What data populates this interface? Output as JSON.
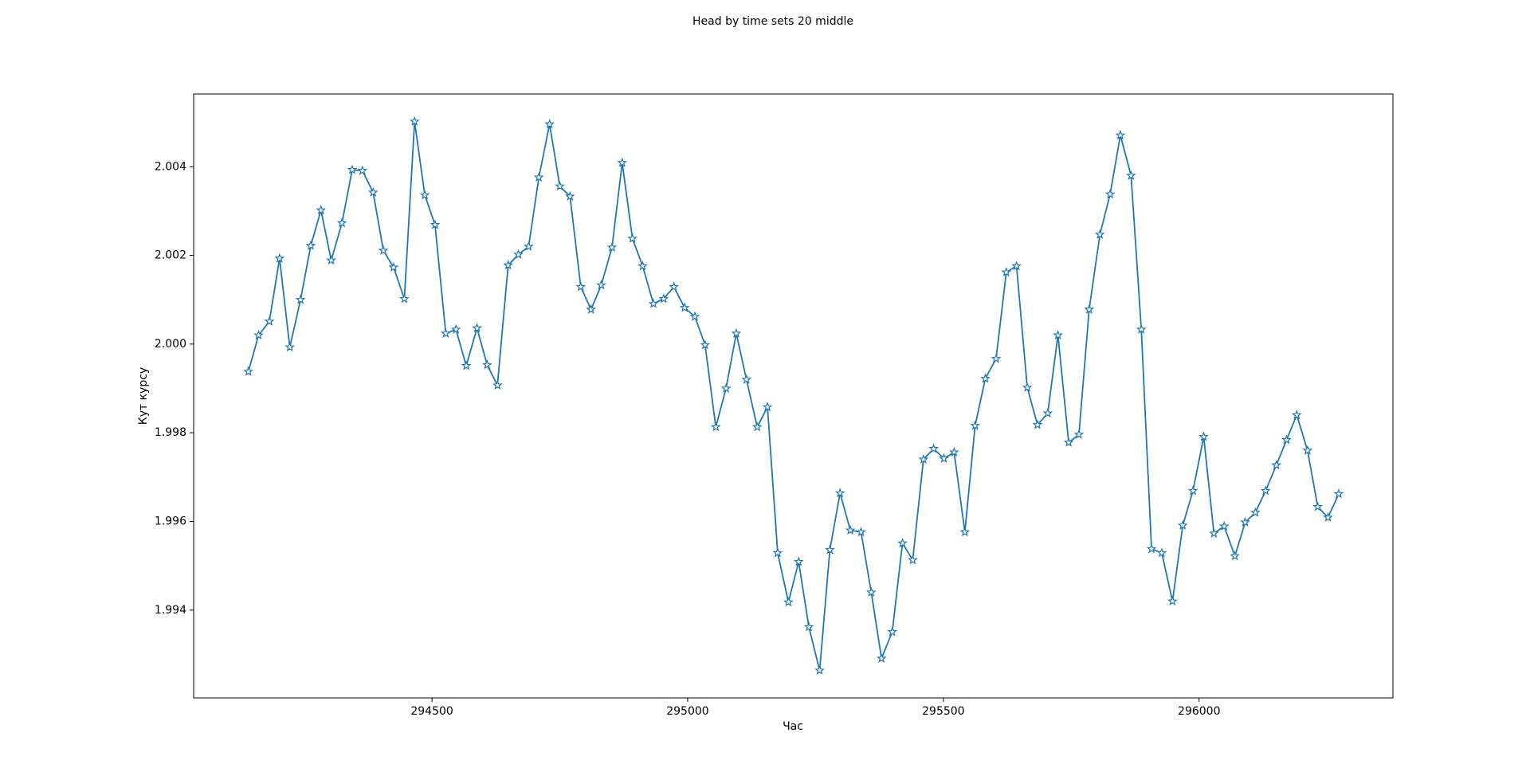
{
  "chart_data": {
    "type": "line",
    "title": "Head by time sets 20 middle",
    "xlabel": "Час",
    "ylabel": "Кут курсу",
    "xlim": [
      294034,
      296379
    ],
    "ylim": [
      1.99202,
      2.00564
    ],
    "xticks": [
      294500,
      295000,
      295500,
      296000
    ],
    "yticks": [
      1.994,
      1.996,
      1.998,
      {
        "value": 2.0,
        "label": "2.000"
      },
      2.002,
      2.004
    ],
    "series": [
      {
        "color": "#1f77b4",
        "marker": "star",
        "x": [
          294141,
          294161,
          294182,
          294202,
          294222,
          294243,
          294263,
          294283,
          294303,
          294324,
          294344,
          294364,
          294385,
          294405,
          294425,
          294446,
          294466,
          294486,
          294506,
          294527,
          294547,
          294567,
          294588,
          294608,
          294628,
          294649,
          294669,
          294689,
          294709,
          294730,
          294750,
          294770,
          294791,
          294811,
          294831,
          294852,
          294872,
          294892,
          294912,
          294933,
          294953,
          294973,
          294994,
          295014,
          295034,
          295055,
          295075,
          295095,
          295115,
          295136,
          295156,
          295176,
          295197,
          295217,
          295237,
          295258,
          295278,
          295298,
          295318,
          295339,
          295359,
          295379,
          295400,
          295420,
          295440,
          295461,
          295481,
          295501,
          295521,
          295542,
          295562,
          295582,
          295603,
          295623,
          295643,
          295664,
          295684,
          295704,
          295724,
          295745,
          295765,
          295785,
          295806,
          295826,
          295846,
          295867,
          295887,
          295907,
          295927,
          295948,
          295968,
          295988,
          296009,
          296029,
          296049,
          296070,
          296090,
          296110,
          296130,
          296151,
          296171,
          296191,
          296212,
          296232,
          296252,
          296273
        ],
        "values": [
          1.99938,
          2.0002,
          2.00051,
          2.00193,
          1.99993,
          2.001,
          2.00222,
          2.00302,
          2.00189,
          2.00273,
          2.00393,
          2.00391,
          2.00342,
          2.00211,
          2.00173,
          2.00102,
          2.00502,
          2.00336,
          2.00269,
          2.00024,
          2.00033,
          1.99951,
          2.00036,
          1.99953,
          1.99907,
          2.00178,
          2.00202,
          2.0022,
          2.00376,
          2.00496,
          2.00356,
          2.00333,
          2.00129,
          2.00078,
          2.00133,
          2.00218,
          2.00409,
          2.00238,
          2.00176,
          2.00091,
          2.00102,
          2.00129,
          2.00082,
          2.00062,
          1.99998,
          1.99813,
          1.999,
          2.00024,
          1.9992,
          1.99813,
          1.99858,
          1.99529,
          1.99418,
          1.99509,
          1.99362,
          1.99264,
          1.99536,
          1.99664,
          1.9958,
          1.99576,
          1.9944,
          1.99291,
          1.99351,
          1.99551,
          1.99513,
          1.9974,
          1.99764,
          1.99742,
          1.99756,
          1.99576,
          1.99816,
          1.99922,
          1.99967,
          2.00162,
          2.00176,
          1.99902,
          1.99818,
          1.99844,
          2.0002,
          1.99778,
          1.99796,
          2.00078,
          2.00247,
          2.00338,
          2.00471,
          2.0038,
          2.00033,
          1.99538,
          1.99529,
          1.9942,
          1.99591,
          1.99669,
          1.99791,
          1.99573,
          1.99589,
          1.99522,
          1.99598,
          1.9962,
          1.99669,
          1.99727,
          1.99784,
          1.9984,
          1.9976,
          1.99633,
          1.99609,
          1.99662
        ]
      }
    ]
  }
}
